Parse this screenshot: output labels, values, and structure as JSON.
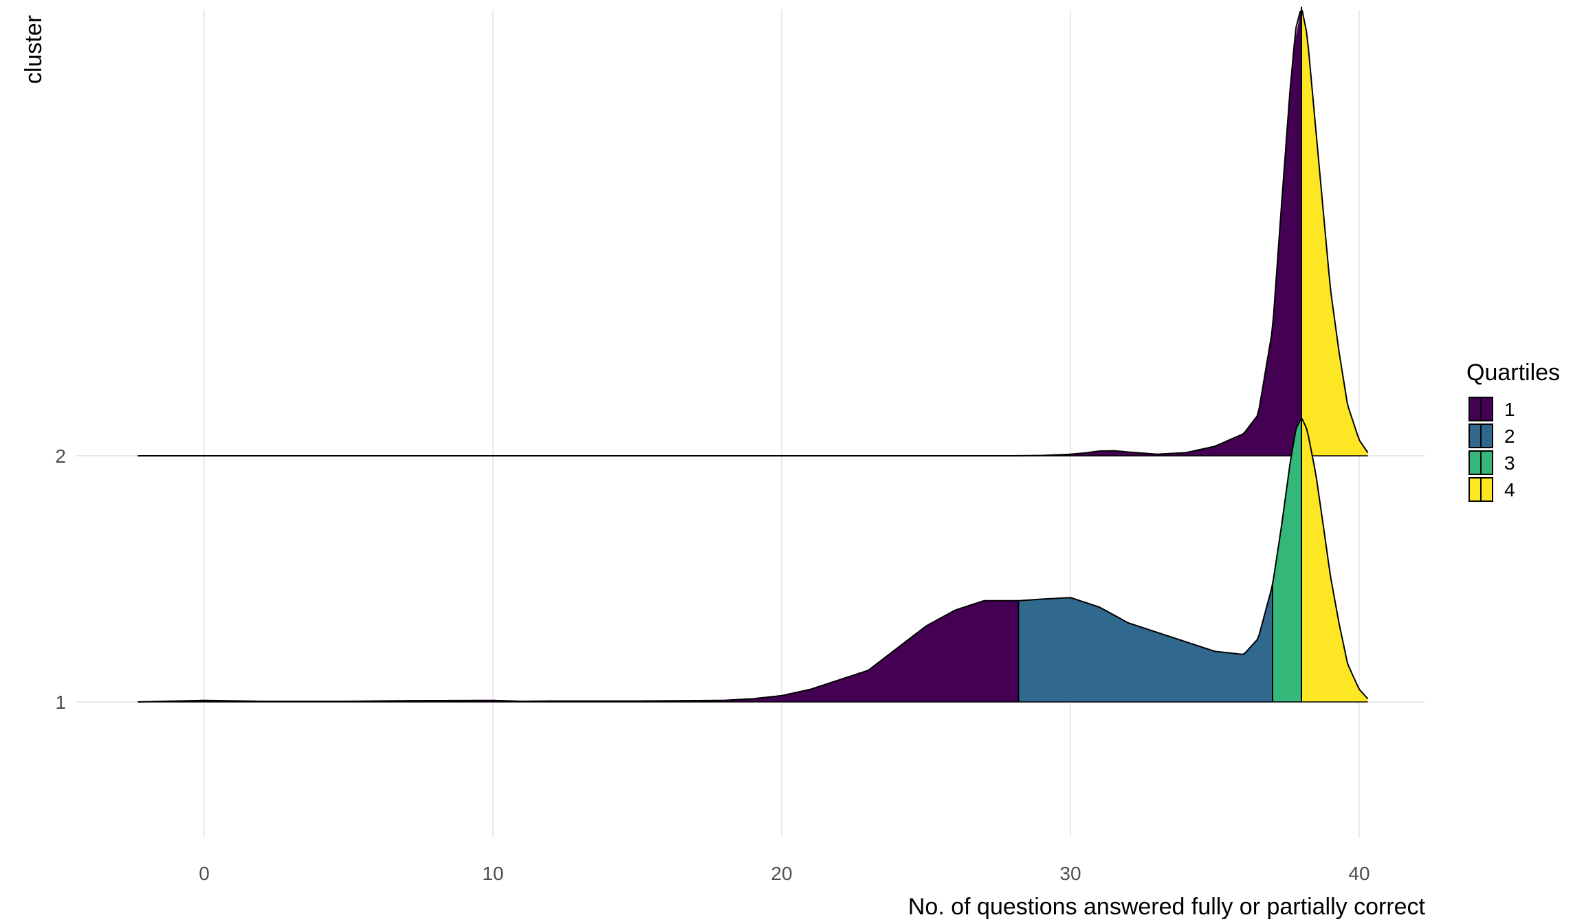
{
  "chart_data": {
    "type": "ridgeline",
    "xlabel": "No. of questions answered fully or partially correct",
    "ylabel": "cluster",
    "xlim": [
      -2.3,
      42.3
    ],
    "x_ticks": [
      0,
      10,
      20,
      30,
      40
    ],
    "x_tick_labels": [
      "0",
      "10",
      "20",
      "30",
      "40"
    ],
    "clusters": [
      "1",
      "2"
    ],
    "legend": {
      "title": "Quartiles",
      "position": "right",
      "entries": [
        {
          "label": "1",
          "color": "#440154"
        },
        {
          "label": "2",
          "color": "#31688E"
        },
        {
          "label": "3",
          "color": "#35B779"
        },
        {
          "label": "4",
          "color": "#FDE725"
        }
      ]
    },
    "series": [
      {
        "name": "1",
        "quartile_breaks": [
          28.2,
          37.0,
          38.0
        ],
        "x": [
          -2.3,
          0,
          2,
          5,
          7,
          10,
          11,
          12,
          15,
          18,
          19,
          20,
          21,
          22,
          23,
          24,
          25,
          26,
          27,
          28,
          28.2,
          29,
          30,
          31,
          32,
          33,
          34,
          35,
          36,
          36.5,
          37,
          37.3,
          37.6,
          37.8,
          38,
          38.2,
          38.5,
          38.8,
          39,
          39.3,
          39.6,
          40,
          40.3
        ],
        "density": [
          0,
          0.005,
          0.002,
          0.002,
          0.004,
          0.005,
          0.002,
          0.003,
          0.003,
          0.005,
          0.01,
          0.02,
          0.04,
          0.07,
          0.1,
          0.17,
          0.24,
          0.29,
          0.32,
          0.32,
          0.32,
          0.325,
          0.33,
          0.3,
          0.25,
          0.22,
          0.19,
          0.16,
          0.15,
          0.2,
          0.37,
          0.55,
          0.75,
          0.86,
          0.9,
          0.86,
          0.72,
          0.53,
          0.4,
          0.25,
          0.12,
          0.04,
          0.01
        ]
      },
      {
        "name": "2",
        "quartile_breaks": [
          38.0
        ],
        "x": [
          -2.3,
          10,
          20,
          28,
          29,
          30,
          30.5,
          31,
          31.5,
          32,
          33,
          34,
          35,
          36,
          36.5,
          37,
          37.3,
          37.6,
          37.8,
          38,
          38.2,
          38.5,
          38.8,
          39,
          39.3,
          39.6,
          40,
          40.3
        ],
        "density": [
          0,
          0,
          0,
          0,
          0.001,
          0.005,
          0.009,
          0.015,
          0.016,
          0.012,
          0.005,
          0.01,
          0.03,
          0.07,
          0.13,
          0.4,
          0.78,
          1.15,
          1.35,
          1.42,
          1.33,
          1.03,
          0.73,
          0.53,
          0.33,
          0.16,
          0.05,
          0.01
        ]
      }
    ]
  }
}
